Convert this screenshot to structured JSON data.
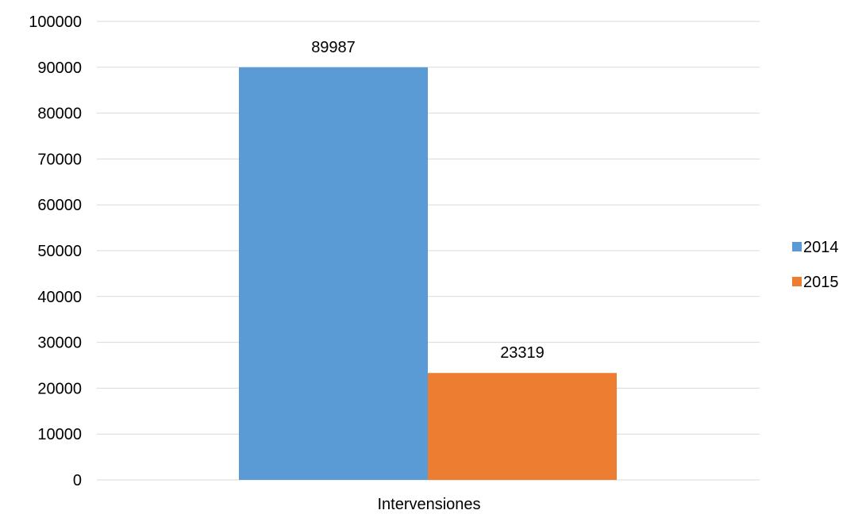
{
  "chart_data": {
    "type": "bar",
    "title": "",
    "xlabel": "",
    "ylabel": "",
    "categories": [
      "Intervensiones"
    ],
    "series": [
      {
        "name": "2014",
        "values": [
          89987
        ],
        "color": "#5B9BD5"
      },
      {
        "name": "2015",
        "values": [
          23319
        ],
        "color": "#ED7D31"
      }
    ],
    "ylim": [
      0,
      100000
    ],
    "yticks": [
      0,
      10000,
      20000,
      30000,
      40000,
      50000,
      60000,
      70000,
      80000,
      90000,
      100000
    ],
    "ytick_labels": [
      "0",
      "10000",
      "20000",
      "30000",
      "40000",
      "50000",
      "60000",
      "70000",
      "80000",
      "90000",
      "100000"
    ],
    "data_labels": [
      "89987",
      "23319"
    ],
    "grid": true,
    "legend_position": "right",
    "gridline_color": "#D9D9D9"
  }
}
